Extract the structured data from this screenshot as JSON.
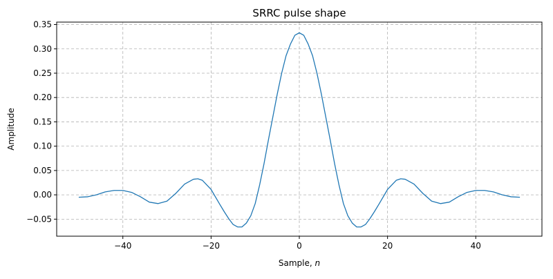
{
  "chart_data": {
    "type": "line",
    "title": "SRRC pulse shape",
    "xlabel_main": "Sample, ",
    "xlabel_var": "n",
    "ylabel": "Amplitude",
    "xlim": [
      -55,
      55
    ],
    "ylim": [
      -0.085,
      0.355
    ],
    "grid": true,
    "color": "#1f77b4",
    "xticks": [
      -40,
      -20,
      0,
      20,
      40
    ],
    "xtick_labels": [
      "−40",
      "−20",
      "0",
      "20",
      "40"
    ],
    "yticks": [
      -0.05,
      0.0,
      0.05,
      0.1,
      0.15,
      0.2,
      0.25,
      0.3,
      0.35
    ],
    "ytick_labels": [
      "−0.05",
      "0.00",
      "0.05",
      "0.10",
      "0.15",
      "0.20",
      "0.25",
      "0.30",
      "0.35"
    ],
    "series": [
      {
        "x": [
          -50,
          -48,
          -46,
          -44,
          -42,
          -40,
          -38,
          -36,
          -34,
          -32,
          -30,
          -28,
          -26,
          -24,
          -23,
          -22,
          -20,
          -18,
          -17,
          -16,
          -15,
          -14,
          -13,
          -12,
          -11,
          -10,
          -9,
          -8,
          -7,
          -6,
          -5,
          -4,
          -3,
          -2,
          -1,
          0,
          1,
          2,
          3,
          4,
          5,
          6,
          7,
          8,
          9,
          10,
          11,
          12,
          13,
          14,
          15,
          16,
          17,
          18,
          20,
          22,
          23,
          24,
          26,
          28,
          30,
          32,
          34,
          36,
          38,
          40,
          42,
          44,
          46,
          48,
          50
        ],
        "y": [
          -0.005,
          -0.004,
          0.0,
          0.006,
          0.009,
          0.009,
          0.005,
          -0.004,
          -0.015,
          -0.018,
          -0.013,
          0.003,
          0.022,
          0.032,
          0.033,
          0.03,
          0.011,
          -0.02,
          -0.035,
          -0.049,
          -0.061,
          -0.066,
          -0.066,
          -0.058,
          -0.043,
          -0.018,
          0.02,
          0.064,
          0.113,
          0.16,
          0.207,
          0.25,
          0.286,
          0.31,
          0.328,
          0.333,
          0.328,
          0.31,
          0.286,
          0.25,
          0.207,
          0.16,
          0.113,
          0.064,
          0.02,
          -0.018,
          -0.043,
          -0.058,
          -0.066,
          -0.066,
          -0.061,
          -0.049,
          -0.035,
          -0.02,
          0.011,
          0.03,
          0.033,
          0.032,
          0.022,
          0.003,
          -0.013,
          -0.018,
          -0.015,
          -0.004,
          0.005,
          0.009,
          0.009,
          0.006,
          0.0,
          -0.004,
          -0.005
        ]
      }
    ]
  }
}
